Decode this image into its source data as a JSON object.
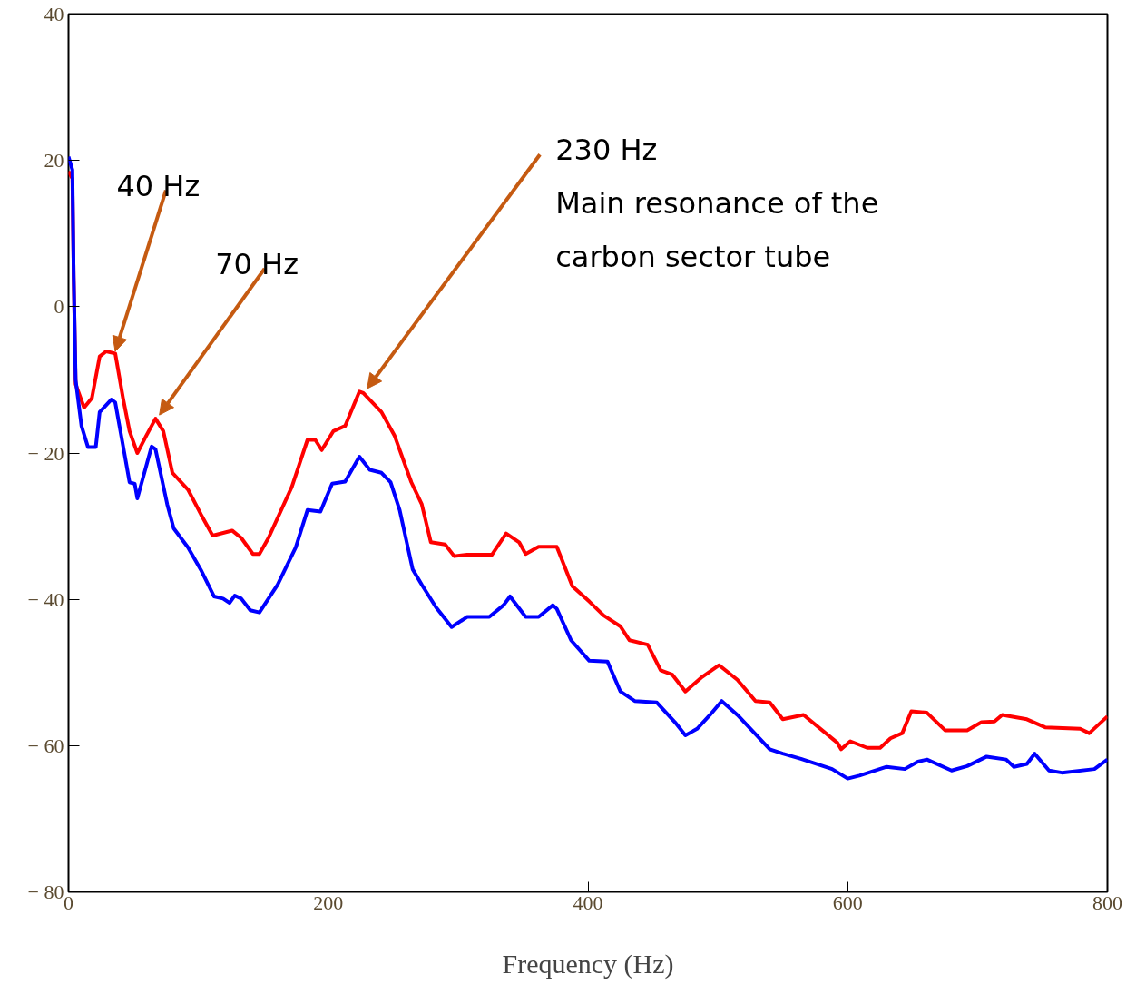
{
  "chart_data": {
    "type": "line",
    "xlabel": "Frequency (Hz)",
    "xlim": [
      0,
      800
    ],
    "ylim": [
      -80,
      40
    ],
    "xticks": [
      0,
      200,
      400,
      600,
      800
    ],
    "yticks": [
      {
        "value": -80,
        "label": "− 80"
      },
      {
        "value": -60,
        "label": "− 60"
      },
      {
        "value": -40,
        "label": "− 40"
      },
      {
        "value": -20,
        "label": "− 20"
      },
      0,
      20,
      40
    ],
    "grid": false,
    "marker": "none",
    "line_style": "solid",
    "series": [
      {
        "color": "#ff0000",
        "x": [
          0,
          3,
          4,
          5.5,
          12,
          18,
          24,
          29,
          36,
          42,
          47,
          53,
          60,
          67,
          73,
          80,
          92,
          102,
          111,
          126,
          133,
          142,
          147,
          154,
          172,
          184,
          190,
          195,
          204,
          213,
          224,
          227,
          241,
          251,
          264,
          272,
          279,
          290,
          297,
          307,
          326,
          337,
          347,
          352,
          362,
          376,
          388,
          401,
          412,
          425,
          432,
          446,
          456,
          465,
          475,
          488,
          501,
          515,
          529,
          540,
          550,
          566,
          592,
          595,
          602,
          615,
          625,
          633,
          642,
          649,
          661,
          675,
          692,
          703,
          713,
          719,
          738,
          752,
          779,
          786,
          800
        ],
        "values": [
          18.5,
          17.5,
          4,
          -10.6,
          -13.8,
          -12.5,
          -6.8,
          -6.1,
          -6.4,
          -12.5,
          -17,
          -20,
          -17.6,
          -15.3,
          -17,
          -22.7,
          -25,
          -28.4,
          -31.3,
          -30.6,
          -31.6,
          -33.8,
          -33.8,
          -31.6,
          -24.6,
          -18.2,
          -18.2,
          -19.6,
          -17,
          -16.3,
          -11.6,
          -11.8,
          -14.4,
          -17.6,
          -24,
          -27,
          -32.2,
          -32.5,
          -34.1,
          -33.9,
          -33.9,
          -31,
          -32.2,
          -33.8,
          -32.8,
          -32.8,
          -38.2,
          -40.3,
          -42.2,
          -43.7,
          -45.6,
          -46.2,
          -49.7,
          -50.3,
          -52.6,
          -50.6,
          -49,
          -51,
          -53.9,
          -54.1,
          -56.4,
          -55.8,
          -59.6,
          -60.5,
          -59.4,
          -60.3,
          -60.3,
          -59,
          -58.3,
          -55.3,
          -55.5,
          -57.9,
          -57.9,
          -56.8,
          -56.7,
          -55.8,
          -56.4,
          -57.5,
          -57.7,
          -58.3,
          -56
        ]
      },
      {
        "color": "#0000ff",
        "x": [
          0,
          3,
          4,
          5.5,
          10,
          15,
          21,
          24,
          33,
          36,
          43,
          47,
          51,
          53,
          64,
          67,
          76,
          81,
          92,
          102,
          112,
          119,
          124,
          128,
          133,
          140,
          147,
          161,
          175,
          184,
          194,
          203,
          213,
          224,
          232,
          241,
          248,
          255,
          265,
          272,
          283,
          295,
          307,
          324,
          335,
          340,
          352,
          362,
          373,
          376,
          387,
          401,
          415,
          425,
          436,
          453,
          467,
          475,
          484,
          494,
          503,
          515,
          540,
          550,
          564,
          588,
          600,
          609,
          630,
          644,
          654,
          661,
          680,
          692,
          707,
          722,
          728,
          738,
          744,
          755,
          765,
          790,
          800
        ],
        "values": [
          20.5,
          18.7,
          4,
          -10,
          -16.3,
          -19.2,
          -19.2,
          -14.4,
          -12.7,
          -13.1,
          -20,
          -24,
          -24.2,
          -26.2,
          -19.1,
          -19.5,
          -27,
          -30.3,
          -32.9,
          -36,
          -39.6,
          -39.9,
          -40.5,
          -39.5,
          -39.9,
          -41.5,
          -41.8,
          -38,
          -32.9,
          -27.8,
          -28,
          -24.2,
          -23.9,
          -20.5,
          -22.3,
          -22.7,
          -24,
          -27.8,
          -35.9,
          -38,
          -41.1,
          -43.8,
          -42.4,
          -42.4,
          -40.8,
          -39.6,
          -42.4,
          -42.4,
          -40.8,
          -41.3,
          -45.6,
          -48.4,
          -48.5,
          -52.6,
          -53.9,
          -54.1,
          -56.8,
          -58.6,
          -57.7,
          -55.8,
          -53.9,
          -55.8,
          -60.5,
          -61.1,
          -61.8,
          -63.2,
          -64.5,
          -64.1,
          -62.9,
          -63.2,
          -62.2,
          -61.9,
          -63.4,
          -62.8,
          -61.5,
          -61.9,
          -62.9,
          -62.5,
          -61.1,
          -63.4,
          -63.7,
          -63.2,
          -61.9
        ]
      }
    ],
    "annotations": [
      {
        "text": "40 Hz",
        "x": 36,
        "y": -6.1
      },
      {
        "text": "70 Hz",
        "x": 70,
        "y": -14.8
      },
      {
        "text": "230 Hz\nMain resonance of the\ncarbon sector tube",
        "x": 230,
        "y": -11.2
      }
    ]
  }
}
